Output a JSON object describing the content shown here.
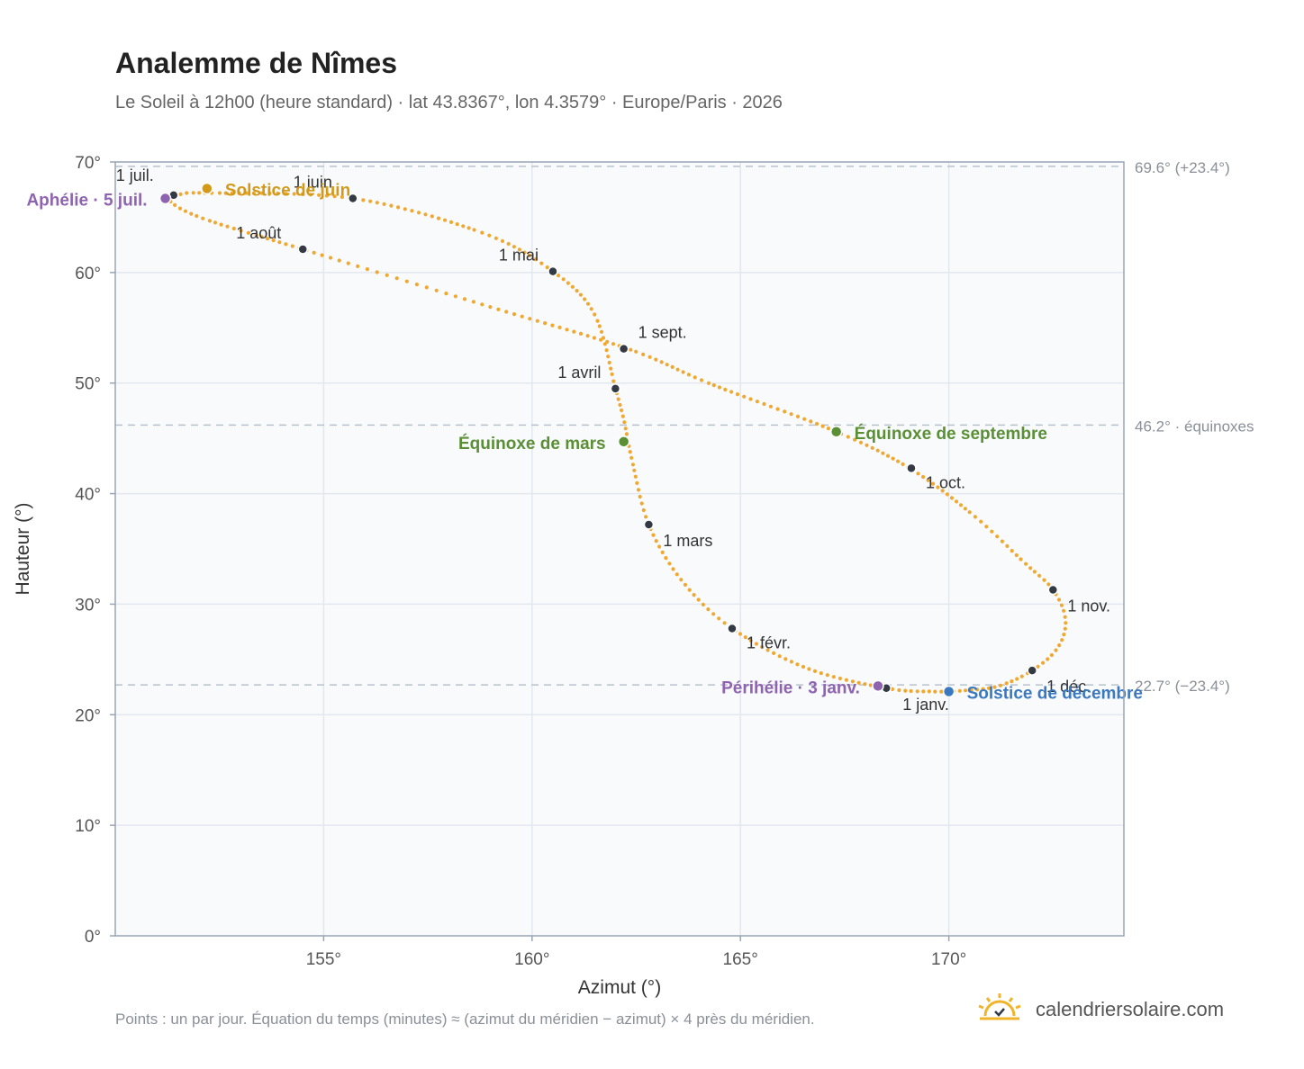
{
  "title": "Analemme de Nîmes",
  "subtitle": "Le Soleil à 12h00 (heure standard) · lat 43.8367°, lon 4.3579° · Europe/Paris · 2026",
  "footnote": "Points : un par jour. Équation du temps (minutes) ≈ (azimut du méridien − azimut) × 4 près du méridien.",
  "brand": {
    "name": "calendriersolaire.com",
    "icon": "sun-logo-icon",
    "color": "#f0b429"
  },
  "colors": {
    "curve": "#f0a830",
    "month_marker": "#333a44",
    "solstice_june": "#d39a1a",
    "equinox": "#5a8f36",
    "solstice_december": "#3a78c0",
    "apsis": "#8e64b0",
    "reference_line": "#b8c2cc",
    "plot_background": "#f8fafc",
    "grid": "#e3e8ee",
    "frame": "#9aa5b3"
  },
  "chart_data": {
    "type": "scatter",
    "xlabel": "Azimut (°)",
    "ylabel": "Hauteur (°)",
    "xlim": [
      150,
      174.2
    ],
    "ylim": [
      0,
      70
    ],
    "xticks": [
      155,
      160,
      165,
      170
    ],
    "yticks": [
      0,
      10,
      20,
      30,
      40,
      50,
      60,
      70
    ],
    "tick_suffix": "°",
    "grid": true,
    "reference_lines": [
      {
        "y": 69.6,
        "label": "69.6° (+23.4°)"
      },
      {
        "y": 46.2,
        "label": "46.2° · équinoxes"
      },
      {
        "y": 22.7,
        "label": "22.7° (−23.4°)"
      }
    ],
    "curve_path": [
      [
        168.5,
        22.4
      ],
      [
        169.6,
        22.1
      ],
      [
        170.4,
        22.2
      ],
      [
        171.2,
        22.6
      ],
      [
        172.0,
        24.0
      ],
      [
        172.6,
        26.0
      ],
      [
        172.8,
        28.5
      ],
      [
        172.5,
        31.3
      ],
      [
        171.8,
        33.8
      ],
      [
        170.6,
        38.0
      ],
      [
        169.1,
        42.2
      ],
      [
        167.3,
        45.6
      ],
      [
        164.3,
        49.9
      ],
      [
        162.3,
        53.1
      ],
      [
        158.9,
        57.0
      ],
      [
        154.5,
        62.1
      ],
      [
        152.1,
        64.9
      ],
      [
        151.3,
        66.5
      ],
      [
        151.5,
        67.0
      ],
      [
        152.2,
        67.2
      ],
      [
        155.7,
        66.7
      ],
      [
        158.8,
        63.6
      ],
      [
        160.5,
        60.1
      ],
      [
        161.5,
        56.2
      ],
      [
        162.0,
        49.5
      ],
      [
        162.2,
        46.7
      ],
      [
        162.4,
        43.0
      ],
      [
        162.8,
        37.2
      ],
      [
        163.6,
        32.1
      ],
      [
        164.8,
        27.8
      ],
      [
        166.6,
        24.2
      ],
      [
        168.5,
        22.4
      ]
    ],
    "month_markers": [
      {
        "label": "1 janv.",
        "x": 168.5,
        "y": 22.4
      },
      {
        "label": "1 févr.",
        "x": 164.8,
        "y": 27.8
      },
      {
        "label": "1 mars",
        "x": 162.8,
        "y": 37.2
      },
      {
        "label": "1 avril",
        "x": 162.0,
        "y": 49.5
      },
      {
        "label": "1 mai",
        "x": 160.5,
        "y": 60.1
      },
      {
        "label": "1 juin",
        "x": 155.7,
        "y": 66.7
      },
      {
        "label": "1 juil.",
        "x": 151.4,
        "y": 67.0
      },
      {
        "label": "1 août",
        "x": 154.5,
        "y": 62.1
      },
      {
        "label": "1 sept.",
        "x": 162.2,
        "y": 53.1
      },
      {
        "label": "1 oct.",
        "x": 169.1,
        "y": 42.3
      },
      {
        "label": "1 nov.",
        "x": 172.5,
        "y": 31.3
      },
      {
        "label": "1 déc.",
        "x": 172.0,
        "y": 24.0
      }
    ],
    "events": [
      {
        "label": "Solstice de juin",
        "x": 152.2,
        "y": 67.6,
        "color_key": "solstice_june"
      },
      {
        "label": "Aphélie · 5 juil.",
        "x": 151.2,
        "y": 66.7,
        "color_key": "apsis"
      },
      {
        "label": "Équinoxe de mars",
        "x": 162.2,
        "y": 44.7,
        "color_key": "equinox"
      },
      {
        "label": "Équinoxe de septembre",
        "x": 167.3,
        "y": 45.6,
        "color_key": "equinox"
      },
      {
        "label": "Périhélie · 3 janv.",
        "x": 168.3,
        "y": 22.6,
        "color_key": "apsis"
      },
      {
        "label": "Solstice de décembre",
        "x": 170.0,
        "y": 22.1,
        "color_key": "solstice_december"
      }
    ]
  }
}
